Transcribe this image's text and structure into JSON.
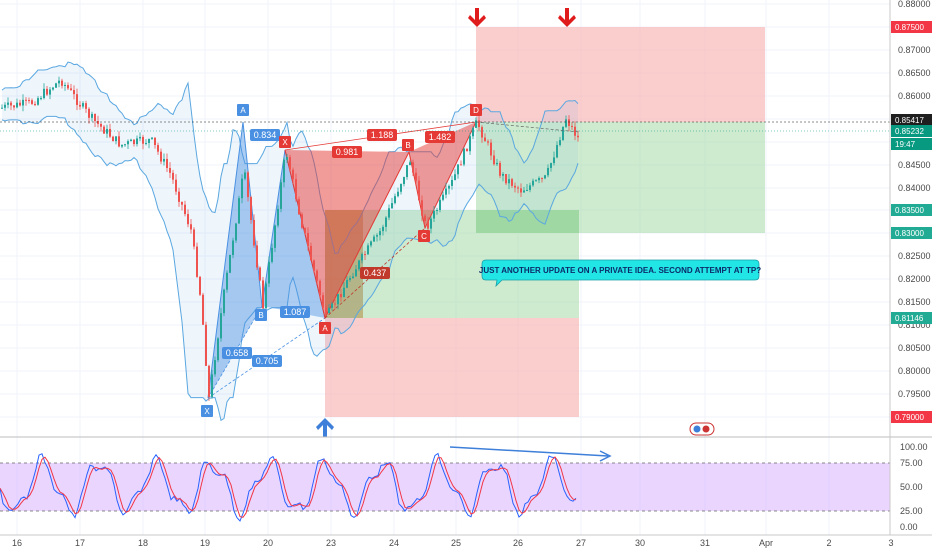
{
  "price_axis": {
    "ticks": [
      "0.88000",
      "0.87500",
      "0.87000",
      "0.86500",
      "0.86000",
      "0.85500",
      "0.85000",
      "0.84500",
      "0.84000",
      "0.83500",
      "0.83000",
      "0.82500",
      "0.82000",
      "0.81500",
      "0.81000",
      "0.80500",
      "0.80000",
      "0.79500",
      "0.79000"
    ],
    "tags": [
      {
        "text": "0.87500",
        "color": "#f23645"
      },
      {
        "text": "0.85417",
        "color": "#1f1f1f"
      },
      {
        "text": "0.85232",
        "color": "#089981"
      },
      {
        "text": "19:47",
        "color": "#089981"
      },
      {
        "text": "0.83500",
        "color": "#22ab94"
      },
      {
        "text": "0.83000",
        "color": "#22ab94"
      },
      {
        "text": "0.81146",
        "color": "#22ab94"
      },
      {
        "text": "0.79000",
        "color": "#f23645"
      }
    ]
  },
  "rsi_axis": {
    "ticks": [
      "100.00",
      "75.00",
      "50.00",
      "25.00",
      "0.00"
    ]
  },
  "time_axis": {
    "ticks": [
      "16",
      "17",
      "18",
      "19",
      "20",
      "23",
      "24",
      "25",
      "26",
      "27",
      "30",
      "31",
      "Apr",
      "2",
      "3"
    ]
  },
  "pattern": {
    "points": [
      {
        "label": "X",
        "color": "#4a90e2"
      },
      {
        "label": "A",
        "color": "#4a90e2"
      },
      {
        "label": "B",
        "color": "#4a90e2"
      },
      {
        "label": "X",
        "color": "#e53935"
      },
      {
        "label": "A",
        "color": "#e53935"
      },
      {
        "label": "B",
        "color": "#e53935"
      },
      {
        "label": "C",
        "color": "#e53935"
      },
      {
        "label": "D",
        "color": "#e53935"
      }
    ],
    "ratios": [
      {
        "text": "0.834",
        "color": "#4a90e2"
      },
      {
        "text": "0.658",
        "color": "#4a90e2"
      },
      {
        "text": "0.705",
        "color": "#4a90e2"
      },
      {
        "text": "1.087",
        "color": "#4a90e2"
      },
      {
        "text": "0.981",
        "color": "#e53935"
      },
      {
        "text": "1.188",
        "color": "#e53935"
      },
      {
        "text": "1.482",
        "color": "#e53935"
      },
      {
        "text": "0.437",
        "color": "#c0392b"
      }
    ]
  },
  "callout": {
    "text": "JUST ANOTHER UPDATE ON A PRIVATE IDEA. SECOND ATTEMPT AT TP?"
  },
  "colors": {
    "up": "#26a69a",
    "down": "#ef5350",
    "band": "#5aa7e0",
    "rsi_k": "#2962ff",
    "rsi_d": "#f23645"
  }
}
